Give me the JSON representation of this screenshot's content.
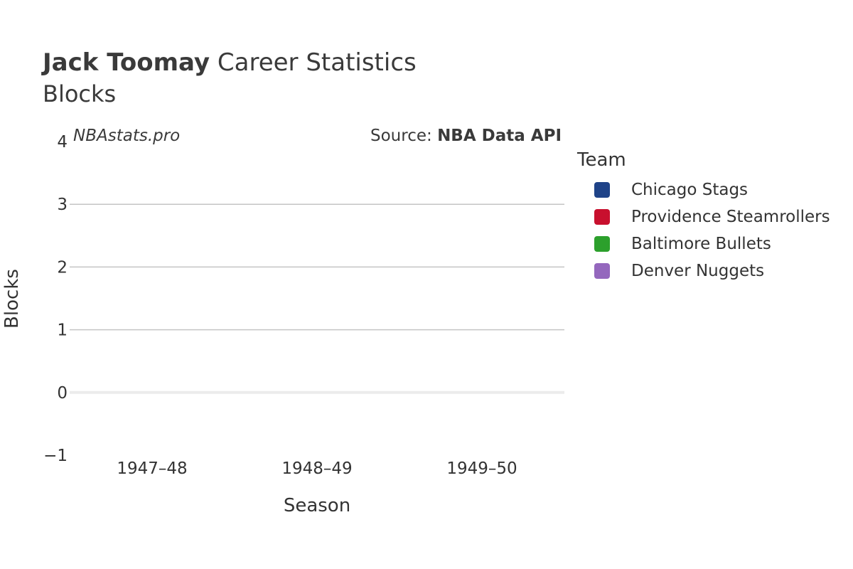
{
  "header": {
    "title_bold": "Jack Toomay",
    "title_rest": " Career Statistics",
    "subtitle": "Blocks"
  },
  "watermark": "NBAstats.pro",
  "source": {
    "prefix": "Source: ",
    "name": "NBA Data API"
  },
  "legend": {
    "title": "Team",
    "items": [
      {
        "label": "Chicago Stags",
        "color": "#1f4388"
      },
      {
        "label": "Providence Steamrollers",
        "color": "#c8102e"
      },
      {
        "label": "Baltimore Bullets",
        "color": "#2ca02c"
      },
      {
        "label": "Denver Nuggets",
        "color": "#9467bd"
      }
    ]
  },
  "chart_data": {
    "type": "bar",
    "title": "Jack Toomay Career Statistics",
    "subtitle": "Blocks",
    "xlabel": "Season",
    "ylabel": "Blocks",
    "categories": [
      "1947–48",
      "1948–49",
      "1949–50"
    ],
    "ylim": [
      -1,
      4
    ],
    "yticks": [
      -1,
      0,
      1,
      2,
      3,
      4
    ],
    "ytick_labels": [
      "−1",
      "0",
      "1",
      "2",
      "3",
      "4"
    ],
    "grid": true,
    "legend_position": "right",
    "series": [
      {
        "name": "Chicago Stags",
        "values": [
          0,
          null,
          null
        ]
      },
      {
        "name": "Providence Steamrollers",
        "values": [
          null,
          0,
          null
        ]
      },
      {
        "name": "Baltimore Bullets",
        "values": [
          null,
          0,
          null
        ]
      },
      {
        "name": "Denver Nuggets",
        "values": [
          null,
          null,
          0
        ]
      }
    ]
  }
}
